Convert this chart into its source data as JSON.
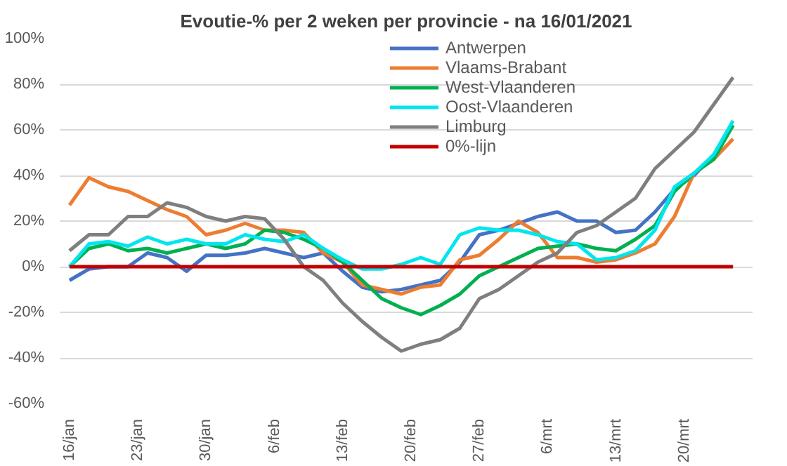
{
  "chart_data": {
    "type": "line",
    "title": "Evoutie-% per 2 weken per provincie - na 16/01/2021",
    "x": [
      "2021-01-16",
      "2021-01-18",
      "2021-01-20",
      "2021-01-22",
      "2021-01-24",
      "2021-01-26",
      "2021-01-28",
      "2021-01-30",
      "2021-02-01",
      "2021-02-03",
      "2021-02-05",
      "2021-02-07",
      "2021-02-09",
      "2021-02-11",
      "2021-02-13",
      "2021-02-15",
      "2021-02-17",
      "2021-02-19",
      "2021-02-21",
      "2021-02-23",
      "2021-02-25",
      "2021-02-27",
      "2021-03-01",
      "2021-03-03",
      "2021-03-05",
      "2021-03-07",
      "2021-03-09",
      "2021-03-11",
      "2021-03-13",
      "2021-03-15",
      "2021-03-17",
      "2021-03-19",
      "2021-03-21",
      "2021-03-23",
      "2021-03-25"
    ],
    "series": [
      {
        "name": "Antwerpen",
        "color": "#4472c4",
        "values": [
          -6,
          -1,
          0,
          0,
          6,
          4,
          -2,
          5,
          5,
          6,
          8,
          6,
          4,
          6,
          -2,
          -9,
          -11,
          -10,
          -8,
          -6,
          2,
          14,
          16,
          19,
          22,
          24,
          20,
          20,
          15,
          16,
          24,
          34,
          40,
          49,
          62
        ]
      },
      {
        "name": "Vlaams-Brabant",
        "color": "#ed7d31",
        "values": [
          27,
          39,
          35,
          33,
          29,
          25,
          22,
          14,
          16,
          19,
          16,
          16,
          15,
          6,
          2,
          -8,
          -10,
          -12,
          -9,
          -8,
          3,
          5,
          12,
          20,
          15,
          4,
          4,
          2,
          3,
          6,
          10,
          22,
          41,
          47,
          56
        ]
      },
      {
        "name": "West-Vlaanderen",
        "color": "#00b050",
        "values": [
          0,
          8,
          10,
          7,
          8,
          6,
          8,
          10,
          8,
          10,
          16,
          15,
          12,
          8,
          2,
          -6,
          -14,
          -18,
          -21,
          -17,
          -12,
          -4,
          0,
          4,
          8,
          9,
          10,
          8,
          7,
          12,
          18,
          33,
          41,
          47,
          62
        ]
      },
      {
        "name": "Oost-Vlaanderen",
        "color": "#00e5ee",
        "values": [
          0,
          10,
          11,
          9,
          13,
          10,
          12,
          10,
          10,
          14,
          12,
          11,
          14,
          8,
          3,
          -1,
          -1,
          1,
          4,
          1,
          14,
          17,
          16,
          16,
          14,
          11,
          10,
          3,
          4,
          7,
          16,
          35,
          41,
          49,
          64
        ]
      },
      {
        "name": "Limburg",
        "color": "#7f7f7f",
        "values": [
          7,
          14,
          14,
          22,
          22,
          28,
          26,
          22,
          20,
          22,
          21,
          12,
          0,
          -6,
          -16,
          -24,
          -31,
          -37,
          -34,
          -32,
          -27,
          -14,
          -10,
          -4,
          2,
          6,
          15,
          18,
          24,
          30,
          43,
          51,
          59,
          71,
          83
        ]
      },
      {
        "name": "0%-lijn",
        "color": "#c00000",
        "values": [
          0,
          0,
          0,
          0,
          0,
          0,
          0,
          0,
          0,
          0,
          0,
          0,
          0,
          0,
          0,
          0,
          0,
          0,
          0,
          0,
          0,
          0,
          0,
          0,
          0,
          0,
          0,
          0,
          0,
          0,
          0,
          0,
          0,
          0,
          0
        ]
      }
    ],
    "xlim": [
      "2021-01-15",
      "2021-03-27"
    ],
    "xticks": [
      {
        "value": "2021-01-16",
        "label": "16/jan"
      },
      {
        "value": "2021-01-23",
        "label": "23/jan"
      },
      {
        "value": "2021-01-30",
        "label": "30/jan"
      },
      {
        "value": "2021-02-06",
        "label": "6/feb"
      },
      {
        "value": "2021-02-13",
        "label": "13/feb"
      },
      {
        "value": "2021-02-20",
        "label": "20/feb"
      },
      {
        "value": "2021-02-27",
        "label": "27/feb"
      },
      {
        "value": "2021-03-06",
        "label": "6/mrt"
      },
      {
        "value": "2021-03-13",
        "label": "13/mrt"
      },
      {
        "value": "2021-03-20",
        "label": "20/mrt"
      }
    ],
    "ylim": [
      -60,
      100
    ],
    "yticks": [
      {
        "value": -60,
        "label": "-60%"
      },
      {
        "value": -40,
        "label": "-40%"
      },
      {
        "value": -20,
        "label": "-20%"
      },
      {
        "value": 0,
        "label": "0%"
      },
      {
        "value": 20,
        "label": "20%"
      },
      {
        "value": 40,
        "label": "40%"
      },
      {
        "value": 60,
        "label": "60%"
      },
      {
        "value": 80,
        "label": "80%"
      },
      {
        "value": 100,
        "label": "100%"
      }
    ],
    "grid": "y",
    "legend": "top right",
    "marker": "none",
    "line_style": "solid"
  }
}
